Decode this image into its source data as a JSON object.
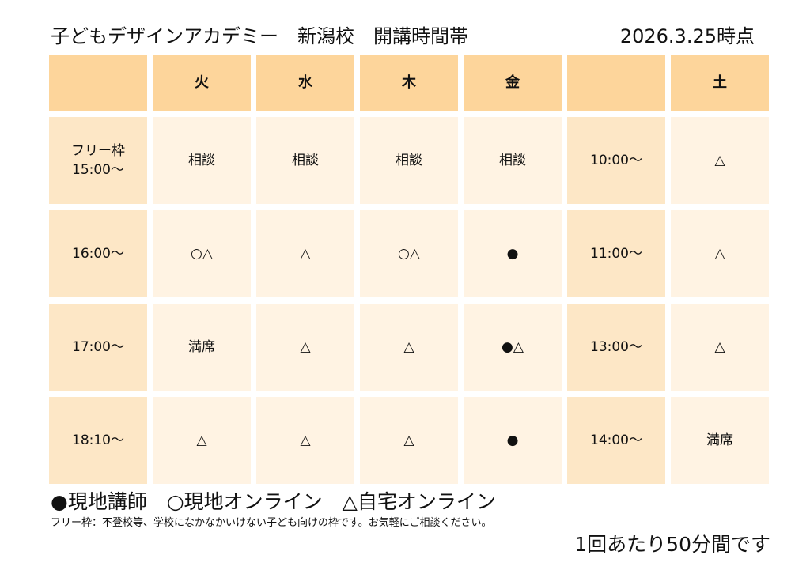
{
  "header": {
    "title": "子どもデザインアカデミー　新潟校　開講時間帯",
    "date": "2026.3.25時点"
  },
  "table": {
    "columns": [
      "",
      "火",
      "水",
      "木",
      "金",
      "",
      "土"
    ],
    "rows": [
      {
        "label": "フリー枠\n15:00〜",
        "cells": [
          "相談",
          "相談",
          "相談",
          "相談"
        ],
        "sat_time": "10:00〜",
        "sat": "△"
      },
      {
        "label": "16:00〜",
        "cells": [
          "○△",
          "△",
          "○△",
          "●"
        ],
        "sat_time": "11:00〜",
        "sat": "△"
      },
      {
        "label": "17:00〜",
        "cells": [
          "満席",
          "△",
          "△",
          "●△"
        ],
        "sat_time": "13:00〜",
        "sat": "△"
      },
      {
        "label": "18:10〜",
        "cells": [
          "△",
          "△",
          "△",
          "●"
        ],
        "sat_time": "14:00〜",
        "sat": "満席"
      }
    ]
  },
  "legend": "●現地講師　○現地オンライン　△自宅オンライン",
  "note": "フリー枠：不登校等、学校になかなかいけない子ども向けの枠です。お気軽にご相談ください。",
  "per_session": "1回あたり50分間です"
}
